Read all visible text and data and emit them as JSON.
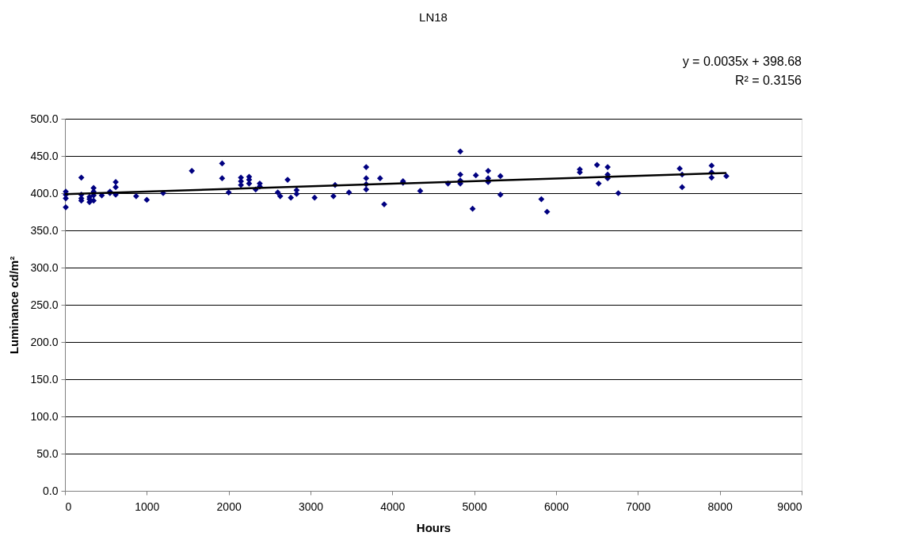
{
  "chart_data": {
    "type": "scatter",
    "title": "LN18",
    "xlabel": "Hours",
    "ylabel": "Luminance cd/m²",
    "annotations": [
      "y = 0.0035x + 398.68",
      "R² = 0.3156"
    ],
    "xlim": [
      0,
      9000
    ],
    "xticks": [
      0,
      {
        "value": 1000,
        "label": "1000"
      },
      {
        "value": 2000,
        "label": "2000"
      },
      {
        "value": 3000,
        "label": "3000"
      },
      {
        "value": 4000,
        "label": "4000"
      },
      {
        "value": 5000,
        "label": "5000"
      },
      {
        "value": 6000,
        "label": "6000"
      },
      {
        "value": 7000,
        "label": "7000"
      },
      {
        "value": 8000,
        "label": "8000"
      },
      {
        "value": 9000,
        "label": "9000"
      }
    ],
    "ylim": [
      0,
      500
    ],
    "yticks": [
      {
        "value": 0,
        "label": "0.0"
      },
      {
        "value": 50,
        "label": "50.0"
      },
      {
        "value": 100,
        "label": "100.0"
      },
      {
        "value": 150,
        "label": "150.0"
      },
      {
        "value": 200,
        "label": "200.0"
      },
      {
        "value": 250,
        "label": "250.0"
      },
      {
        "value": 300,
        "label": "300.0"
      },
      {
        "value": 350,
        "label": "350.0"
      },
      {
        "value": 400,
        "label": "400.0"
      },
      {
        "value": 450,
        "label": "450.0"
      },
      {
        "value": 500,
        "label": "500.0"
      }
    ],
    "grid": "y",
    "series": [
      {
        "color": "#000080",
        "marker": "diamond",
        "x": [
          10,
          10,
          10,
          10,
          200,
          200,
          200,
          200,
          300,
          300,
          300,
          350,
          350,
          350,
          350,
          450,
          550,
          550,
          620,
          620,
          620,
          870,
          1000,
          1200,
          1550,
          1920,
          1920,
          2000,
          2150,
          2150,
          2150,
          2250,
          2250,
          2250,
          2330,
          2380,
          2380,
          2600,
          2630,
          2720,
          2760,
          2830,
          2830,
          3050,
          3280,
          3300,
          3470,
          3680,
          3680,
          3680,
          3680,
          3850,
          3900,
          4130,
          4130,
          4340,
          4680,
          4830,
          4830,
          4830,
          4830,
          4980,
          5020,
          5170,
          5170,
          5170,
          5320,
          5320,
          5820,
          5890,
          6290,
          6290,
          6500,
          6520,
          6630,
          6630,
          6630,
          6760,
          7510,
          7540,
          7540,
          7900,
          7900,
          7900,
          8080
        ],
        "values": [
          402,
          398,
          393,
          381,
          421,
          398,
          393,
          390,
          395,
          392,
          388,
          407,
          402,
          397,
          390,
          397,
          400,
          402,
          415,
          408,
          398,
          396,
          391,
          400,
          430,
          440,
          420,
          401,
          421,
          416,
          411,
          422,
          418,
          413,
          405,
          413,
          409,
          401,
          396,
          418,
          394,
          404,
          399,
          394,
          396,
          411,
          401,
          435,
          420,
          412,
          405,
          420,
          385,
          416,
          414,
          403,
          413,
          456,
          425,
          417,
          413,
          379,
          424,
          430,
          420,
          415,
          423,
          398,
          392,
          375,
          432,
          428,
          438,
          413,
          435,
          425,
          420,
          400,
          433,
          425,
          408,
          437,
          428,
          421,
          423
        ]
      },
      {
        "type": "line",
        "color": "#000000",
        "marker": "none",
        "x": [
          0,
          8080
        ],
        "values": [
          398.7,
          427.0
        ],
        "line_style": "solid"
      }
    ]
  }
}
